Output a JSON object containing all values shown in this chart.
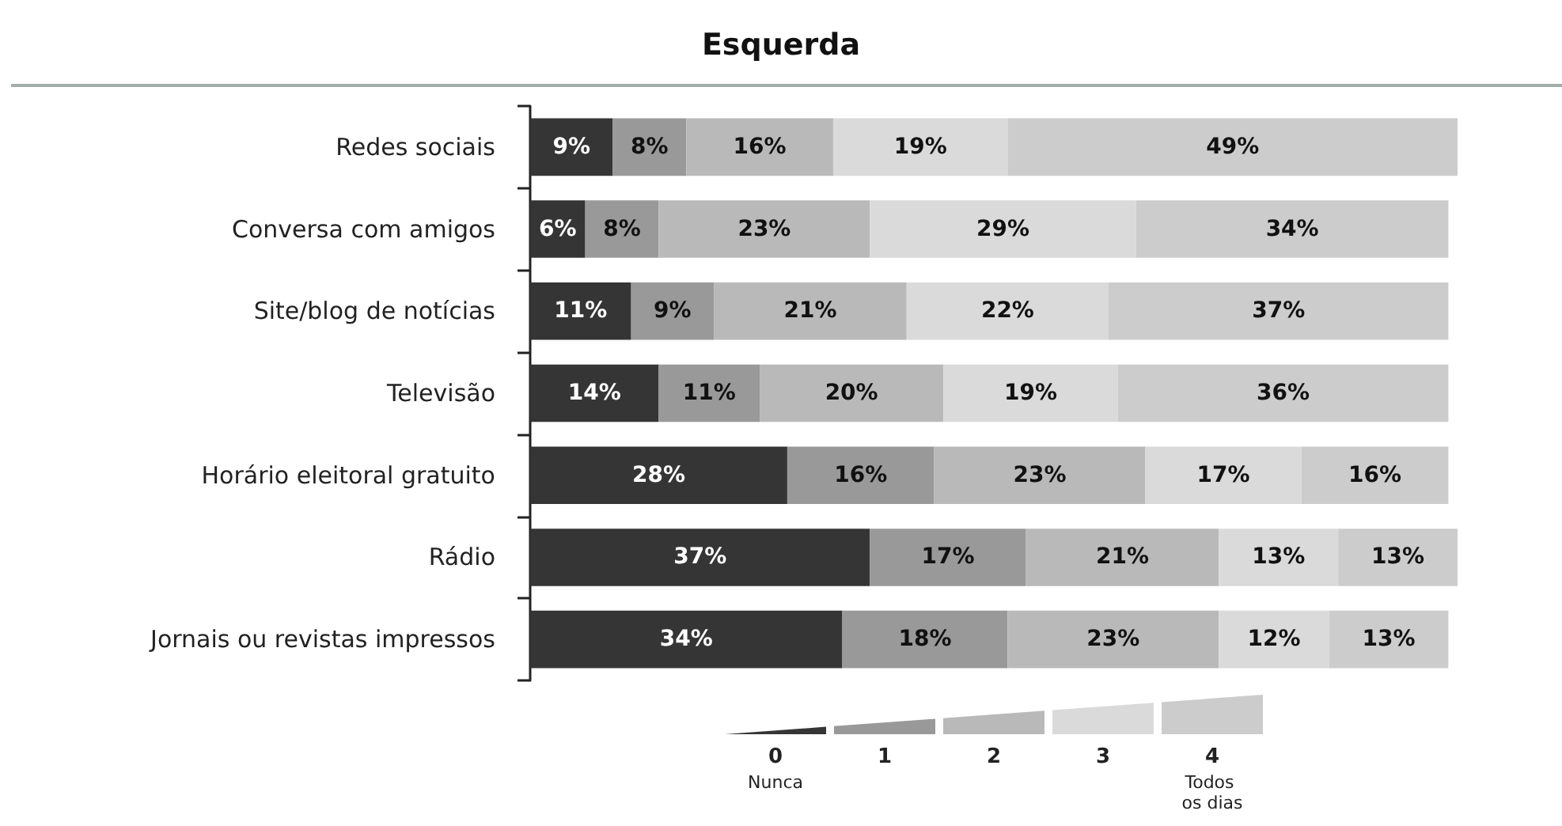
{
  "chart_data": {
    "type": "bar",
    "title": "Esquerda",
    "orientation": "horizontal",
    "stacked": true,
    "legend": "bottom",
    "tick_labels": "y",
    "categories": [
      "Redes sociais",
      "Conversa com amigos",
      "Site/blog de notícias",
      "Televisão",
      "Horário eleitoral gratuito",
      "Rádio",
      "Jornais ou revistas impressos"
    ],
    "series": [
      {
        "name": "0\nNunca",
        "color": "#353535",
        "values": [
          9,
          6,
          11,
          14,
          28,
          37,
          34
        ],
        "value_labels": [
          "9%",
          "6%",
          "11%",
          "14%",
          "28%",
          "37%",
          "34%"
        ]
      },
      {
        "name": "1",
        "color": "#999999",
        "values": [
          8,
          8,
          9,
          11,
          16,
          17,
          18
        ],
        "value_labels": [
          "8%",
          "8%",
          "9%",
          "11%",
          "16%",
          "17%",
          "18%"
        ]
      },
      {
        "name": "2",
        "color": "#b9b9b9",
        "values": [
          16,
          23,
          21,
          20,
          23,
          21,
          23
        ],
        "value_labels": [
          "16%",
          "23%",
          "21%",
          "20%",
          "23%",
          "21%",
          "23%"
        ]
      },
      {
        "name": "3",
        "color": "#dadada",
        "values": [
          19,
          29,
          22,
          19,
          17,
          13,
          12
        ],
        "value_labels": [
          "19%",
          "29%",
          "22%",
          "19%",
          "17%",
          "13%",
          "12%"
        ]
      },
      {
        "name": "4\nTodos os dias",
        "color": "#cccccc",
        "values": [
          49,
          34,
          37,
          36,
          16,
          13,
          13
        ],
        "value_labels": [
          "49%",
          "34%",
          "37%",
          "36%",
          "16%",
          "13%",
          "13%"
        ]
      }
    ]
  }
}
